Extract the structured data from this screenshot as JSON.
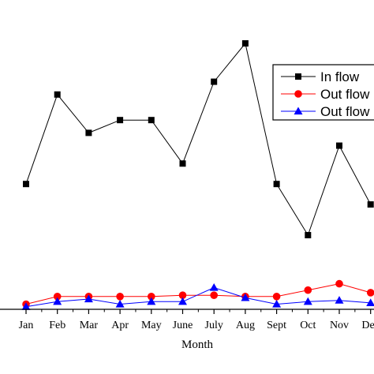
{
  "chart_data": {
    "type": "line",
    "title": "",
    "xlabel": "Month",
    "ylabel": "",
    "categories": [
      "Jan",
      "Feb",
      "Mar",
      "Apr",
      "May",
      "June",
      "July",
      "Aug",
      "Sept",
      "Oct",
      "Nov",
      "Dec"
    ],
    "ylim": [
      0,
      108
    ],
    "grid": false,
    "legend_position": "top-right",
    "series": [
      {
        "name": "In flow",
        "marker": "square",
        "color": "#000000",
        "values": [
          49,
          84,
          69,
          74,
          74,
          57,
          89,
          104,
          49,
          29,
          64,
          41
        ]
      },
      {
        "name": "Out flow",
        "marker": "circle",
        "color": "#ff0000",
        "values": [
          2,
          5,
          5,
          5,
          5,
          5.5,
          5.5,
          5,
          5,
          7.5,
          10,
          6.5
        ]
      },
      {
        "name": "Out flow",
        "marker": "triangle",
        "color": "#0000ff",
        "values": [
          1,
          3,
          4,
          2,
          3,
          3,
          8.5,
          4.5,
          2,
          3,
          3.5,
          2.5
        ]
      }
    ]
  }
}
